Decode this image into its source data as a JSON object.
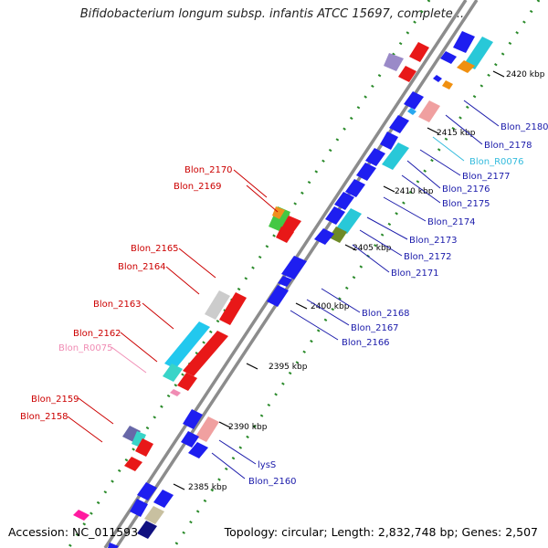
{
  "title": "Bifidobacterium longum subsp. infantis ATCC 15697, complete ...",
  "accession": "Accession: NC_011593",
  "topology": "Topology: circular; Length: 2,832,748 bp; Genes: 2,507",
  "ticks": [
    "2420 kbp",
    "2415 kbp",
    "2410 kbp",
    "2405 kbp",
    "2400 kbp",
    "2395 kbp",
    "2390 kbp",
    "2385 kbp"
  ],
  "genes_left": [
    {
      "label": "Blon_2170",
      "color": "#cc0000"
    },
    {
      "label": "Blon_2169",
      "color": "#cc0000"
    },
    {
      "label": "Blon_2165",
      "color": "#cc0000"
    },
    {
      "label": "Blon_2164",
      "color": "#cc0000"
    },
    {
      "label": "Blon_2163",
      "color": "#cc0000"
    },
    {
      "label": "Blon_2162",
      "color": "#cc0000"
    },
    {
      "label": "Blon_R0075",
      "color": "#f08cb4"
    },
    {
      "label": "Blon_2159",
      "color": "#cc0000"
    },
    {
      "label": "Blon_2158",
      "color": "#cc0000"
    }
  ],
  "genes_right": [
    {
      "label": "Blon_2180",
      "color": "#1a1aaa"
    },
    {
      "label": "Blon_2178",
      "color": "#1a1aaa"
    },
    {
      "label": "Blon_R0076",
      "color": "#33bbdd"
    },
    {
      "label": "Blon_2177",
      "color": "#1a1aaa"
    },
    {
      "label": "Blon_2176",
      "color": "#1a1aaa"
    },
    {
      "label": "Blon_2175",
      "color": "#1a1aaa"
    },
    {
      "label": "Blon_2174",
      "color": "#1a1aaa"
    },
    {
      "label": "Blon_2173",
      "color": "#1a1aaa"
    },
    {
      "label": "Blon_2172",
      "color": "#1a1aaa"
    },
    {
      "label": "Blon_2171",
      "color": "#1a1aaa"
    },
    {
      "label": "Blon_2168",
      "color": "#1a1aaa"
    },
    {
      "label": "Blon_2167",
      "color": "#1a1aaa"
    },
    {
      "label": "Blon_2166",
      "color": "#1a1aaa"
    },
    {
      "label": "lysS",
      "color": "#1a1aaa"
    },
    {
      "label": "Blon_2160",
      "color": "#1a1aaa"
    }
  ]
}
